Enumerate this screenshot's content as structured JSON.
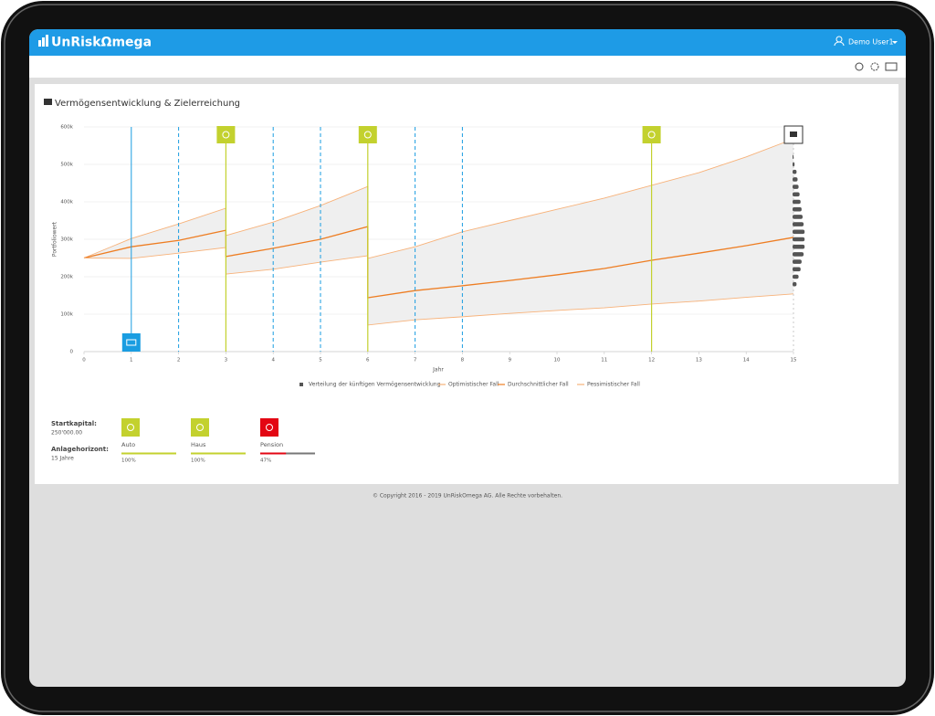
{
  "app": {
    "brand": "UnRiskΩmega",
    "user": "Demo User1",
    "footer": "© Copyright 2016 - 2019 UnRiskOmega AG. Alle Rechte vorbehalten."
  },
  "chart_data": {
    "type": "line",
    "title": "Vermögensentwicklung & Zielerreichung",
    "x_label": "Jahr",
    "y_label": "Portfoliowert",
    "x": [
      0,
      1,
      2,
      3,
      3,
      4,
      5,
      6,
      6,
      7,
      8,
      9,
      10,
      11,
      12,
      13,
      14,
      15
    ],
    "series": [
      {
        "name": "Optimistischer Fall",
        "color": "#f7b27a",
        "values": [
          250000,
          302000,
          341000,
          383000,
          310000,
          346000,
          390000,
          441000,
          249000,
          280000,
          320000,
          350000,
          380000,
          410000,
          444000,
          478000,
          520000,
          568000
        ]
      },
      {
        "name": "Durchschnittlicher Fall",
        "color": "#ee7d22",
        "values": [
          250000,
          280000,
          297000,
          324000,
          254000,
          276000,
          300000,
          334000,
          144000,
          163000,
          176000,
          190000,
          205000,
          222000,
          244000,
          263000,
          283000,
          305000
        ]
      },
      {
        "name": "Pessimistischer Fall",
        "color": "#f7b27a",
        "values": [
          250000,
          249000,
          263000,
          278000,
          207000,
          220000,
          239000,
          256000,
          71000,
          85000,
          93000,
          102000,
          110000,
          117000,
          127000,
          135000,
          145000,
          154000
        ]
      }
    ],
    "distribution": {
      "name": "Verteilung der künftigen Vermögensentwicklung",
      "color": "#555555",
      "y": [
        180000,
        200000,
        220000,
        240000,
        260000,
        280000,
        300000,
        320000,
        340000,
        360000,
        380000,
        400000,
        420000,
        440000,
        460000,
        480000,
        500000,
        520000
      ],
      "counts": [
        4,
        6,
        8,
        9,
        11,
        12,
        12,
        12,
        11,
        10,
        9,
        8,
        7,
        6,
        5,
        4,
        2,
        1
      ]
    },
    "band_color": "#efefef",
    "events": {
      "deposit": {
        "x": [
          1
        ],
        "color": "#1a9de1"
      },
      "contributions": {
        "x": [
          2,
          4,
          5,
          7,
          8
        ],
        "color": "#1a9de1"
      },
      "goals": {
        "x": [
          3,
          6,
          12
        ],
        "color": "#c3d12e"
      },
      "horizon": {
        "x": [
          15
        ],
        "color": "#333333"
      }
    },
    "xlim": [
      0,
      15
    ],
    "xticks": [
      0,
      1,
      2,
      3,
      4,
      5,
      6,
      7,
      8,
      9,
      10,
      11,
      12,
      13,
      14,
      15
    ],
    "ylim": [
      0,
      600000
    ],
    "yticks": [
      0,
      {
        "value": 100000,
        "label": "100k"
      },
      {
        "value": 200000,
        "label": "200k"
      },
      {
        "value": 300000,
        "label": "300k"
      },
      {
        "value": 400000,
        "label": "400k"
      },
      {
        "value": 500000,
        "label": "500k"
      },
      {
        "value": 600000,
        "label": "600k"
      }
    ],
    "grid": true,
    "legend": "bottom"
  },
  "summary": {
    "start_label": "Startkapital:",
    "start_value": "250'000.00",
    "horizon_label": "Anlagehorizont:",
    "horizon_value": "15 Jahre"
  },
  "goals": [
    {
      "name": "Auto",
      "progress": 100,
      "progress_label": "100%",
      "color": "#c3d12e"
    },
    {
      "name": "Haus",
      "progress": 100,
      "progress_label": "100%",
      "color": "#c3d12e"
    },
    {
      "name": "Pension",
      "progress": 47,
      "progress_label": "47%",
      "color": "#e30613"
    }
  ]
}
